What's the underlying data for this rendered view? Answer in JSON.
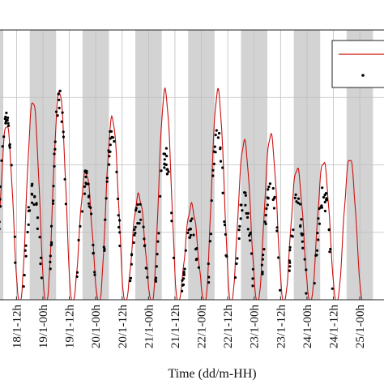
{
  "chart_data": {
    "type": "line",
    "xlabel": "Time (dd/m-HH)",
    "ylabel": "",
    "x_ticks": [
      "18/1-12h",
      "19/1-00h",
      "19/1-12h",
      "20/1-00h",
      "20/1-12h",
      "21/1-00h",
      "21/1-12h",
      "22/1-00h",
      "22/1-12h",
      "23/1-00h",
      "23/1-12h",
      "24/1-00h",
      "24/1-12h",
      "25/1-00h"
    ],
    "x_range_hours": [
      -7.5,
      167
    ],
    "y_range": [
      0,
      4
    ],
    "grid": true,
    "shaded_periods": "night (gray bands)",
    "legend_position": "top-right",
    "colors": {
      "model_line": "#cc1111",
      "observed_points": "#000000",
      "night_band": "#d3d3d3",
      "grid": "#bfbfbf"
    },
    "series": [
      {
        "style": "line",
        "peaks": [
          {
            "x": -4.5,
            "y": 2.6
          },
          {
            "x": 7.5,
            "y": 2.95
          },
          {
            "x": 19.5,
            "y": 3.1
          },
          {
            "x": 31.5,
            "y": 1.9
          },
          {
            "x": 43.5,
            "y": 2.7
          },
          {
            "x": 55.5,
            "y": 1.55
          },
          {
            "x": 67.5,
            "y": 3.1
          },
          {
            "x": 79.5,
            "y": 1.4
          },
          {
            "x": 91.5,
            "y": 3.1
          },
          {
            "x": 103.5,
            "y": 2.35
          },
          {
            "x": 115.5,
            "y": 2.45
          },
          {
            "x": 127.5,
            "y": 1.95
          },
          {
            "x": 139.5,
            "y": 2.05
          },
          {
            "x": 151.5,
            "y": 2.1
          }
        ]
      },
      {
        "style": "scatter",
        "clusters": [
          {
            "x": -4.5,
            "y": 2.75
          },
          {
            "x": 7.5,
            "y": 1.6
          },
          {
            "x": 19.5,
            "y": 3.0
          },
          {
            "x": 31.5,
            "y": 1.75
          },
          {
            "x": 43.5,
            "y": 2.5
          },
          {
            "x": 55.5,
            "y": 1.3
          },
          {
            "x": 67.5,
            "y": 2.15
          },
          {
            "x": 79.5,
            "y": 1.05
          },
          {
            "x": 91.5,
            "y": 2.5
          },
          {
            "x": 103.5,
            "y": 1.5
          },
          {
            "x": 115.5,
            "y": 1.75
          },
          {
            "x": 127.5,
            "y": 1.45
          },
          {
            "x": 139.5,
            "y": 1.55
          }
        ]
      }
    ]
  }
}
